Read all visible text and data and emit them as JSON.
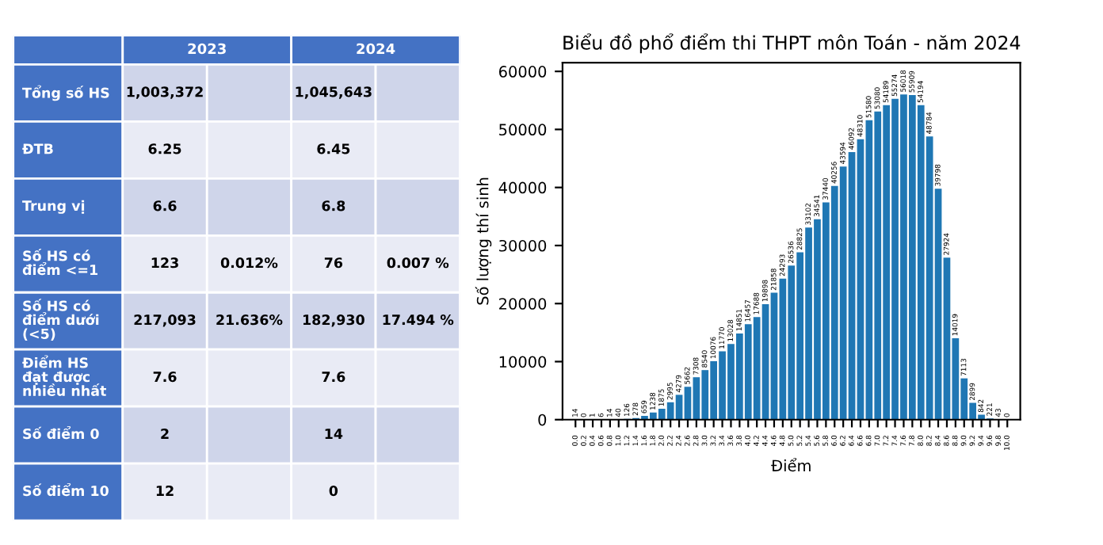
{
  "chart_data": [
    {
      "type": "other",
      "categories": [
        "2023",
        "2024"
      ],
      "y_categories": [
        "Tổng số HS",
        "ĐTB",
        "Trung vị",
        "Số HS có\nđiểm <=1",
        "Số HS có\nđiểm dưới\n(<5)",
        "Điểm HS\nđạt được\nnhiều nhất",
        "Số điểm 0",
        "Số điểm 10"
      ],
      "cell_labels": [
        [
          "1,003,372",
          null,
          "1,045,643",
          null
        ],
        [
          "6.25",
          null,
          "6.45",
          null
        ],
        [
          "6.6",
          null,
          "6.8",
          null
        ],
        [
          "123",
          "0.012%",
          "76",
          "0.007 %"
        ],
        [
          "217,093",
          "21.636%",
          "182,930",
          "17.494 %"
        ],
        [
          "7.6",
          null,
          "7.6",
          null
        ],
        [
          "2",
          null,
          "14",
          null
        ],
        [
          "12",
          null,
          "0",
          null
        ]
      ]
    },
    {
      "type": "bar",
      "title": "Biểu đồ phổ điểm thi THPT môn Toán - năm 2024",
      "xlabel": "Điểm",
      "ylabel": "Số lượng thí sinh",
      "categories": [
        "0.0",
        "0.2",
        "0.4",
        "0.6",
        "0.8",
        "1.0",
        "1.2",
        "1.4",
        "1.6",
        "1.8",
        "2.0",
        "2.2",
        "2.4",
        "2.6",
        "2.8",
        "3.0",
        "3.2",
        "3.4",
        "3.6",
        "3.8",
        "4.0",
        "4.2",
        "4.4",
        "4.6",
        "4.8",
        "5.0",
        "5.2",
        "5.4",
        "5.6",
        "5.8",
        "6.0",
        "6.2",
        "6.4",
        "6.6",
        "6.8",
        "7.0",
        "7.2",
        "7.4",
        "7.6",
        "7.8",
        "8.0",
        "8.2",
        "8.4",
        "8.6",
        "8.8",
        "9.0",
        "9.2",
        "9.4",
        "9.6",
        "9.8",
        "10.0"
      ],
      "values": [
        14,
        0,
        1,
        6,
        14,
        40,
        126,
        278,
        659,
        1238,
        1875,
        2995,
        4279,
        5662,
        7308,
        8540,
        10076,
        11770,
        13028,
        14851,
        16457,
        17688,
        19898,
        21858,
        24293,
        26536,
        28825,
        33102,
        34541,
        37440,
        40256,
        43594,
        46092,
        48310,
        51580,
        53080,
        54189,
        55274,
        56018,
        55909,
        54194,
        48784,
        39798,
        27924,
        14019,
        7113,
        2899,
        842,
        221,
        43,
        0
      ],
      "color": "#1f77b4",
      "ylim": [
        0,
        61500
      ],
      "yticks": [
        0,
        10000,
        20000,
        30000,
        40000,
        50000,
        60000
      ],
      "data_labels": true,
      "grid": false
    }
  ]
}
